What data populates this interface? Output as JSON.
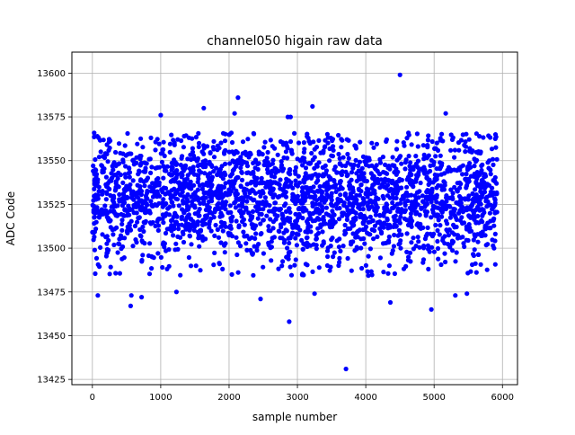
{
  "chart_data": {
    "type": "scatter",
    "title": "channel050 higain raw data",
    "xlabel": "sample number",
    "ylabel": "ADC Code",
    "xlim": [
      -300,
      6220
    ],
    "ylim": [
      13422,
      13612
    ],
    "xticks": [
      0,
      1000,
      2000,
      3000,
      4000,
      5000,
      6000
    ],
    "yticks": [
      13425,
      13450,
      13475,
      13500,
      13525,
      13550,
      13575,
      13600
    ],
    "grid": true,
    "legend": "none",
    "marker_color": "#0000ff",
    "series": [
      {
        "sample_count": 5920,
        "x_range": [
          0,
          5920
        ],
        "baseline_mean": 13528,
        "typical_band": [
          13490,
          13565
        ],
        "outliers": [
          {
            "x": 4500,
            "y": 13599
          },
          {
            "x": 2130,
            "y": 13586
          },
          {
            "x": 3220,
            "y": 13581
          },
          {
            "x": 1630,
            "y": 13580
          },
          {
            "x": 2080,
            "y": 13577
          },
          {
            "x": 5170,
            "y": 13577
          },
          {
            "x": 1000,
            "y": 13576
          },
          {
            "x": 2860,
            "y": 13575
          },
          {
            "x": 2900,
            "y": 13575
          },
          {
            "x": 3710,
            "y": 13431
          },
          {
            "x": 2880,
            "y": 13458
          },
          {
            "x": 4960,
            "y": 13465
          },
          {
            "x": 560,
            "y": 13467
          },
          {
            "x": 4360,
            "y": 13469
          },
          {
            "x": 80,
            "y": 13473
          },
          {
            "x": 570,
            "y": 13473
          },
          {
            "x": 720,
            "y": 13472
          },
          {
            "x": 1230,
            "y": 13475
          },
          {
            "x": 2460,
            "y": 13471
          },
          {
            "x": 3250,
            "y": 13474
          },
          {
            "x": 5310,
            "y": 13473
          },
          {
            "x": 5480,
            "y": 13474
          }
        ]
      }
    ]
  }
}
